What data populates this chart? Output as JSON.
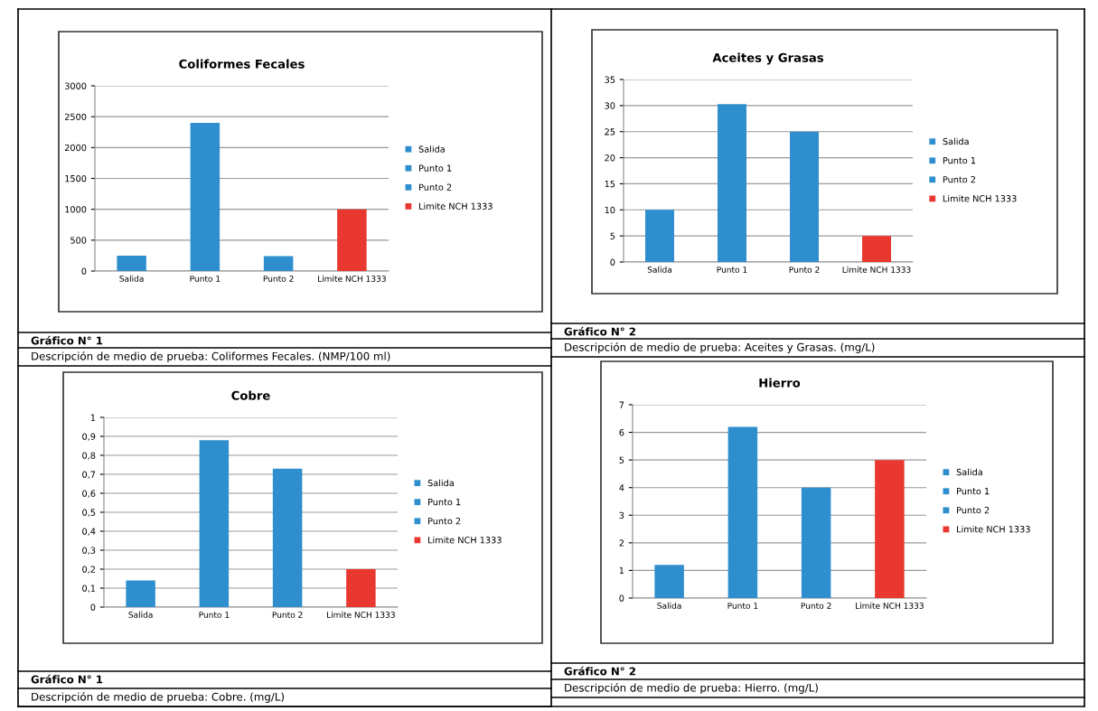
{
  "chart_data": [
    {
      "type": "bar",
      "title": "Coliformes Fecales",
      "categories": [
        "Salida",
        "Punto 1",
        "Punto 2",
        "Limite NCH 1333"
      ],
      "series": [
        {
          "name": "Salida",
          "color": "#2f8fce",
          "values": [
            250,
            null,
            null,
            null
          ]
        },
        {
          "name": "Punto 1",
          "color": "#2f8fce",
          "values": [
            null,
            2400,
            null,
            null
          ]
        },
        {
          "name": "Punto 2",
          "color": "#2f8fce",
          "values": [
            null,
            null,
            240,
            null
          ]
        },
        {
          "name": "Limite NCH 1333",
          "color": "#e8382f",
          "values": [
            null,
            null,
            null,
            1000
          ]
        }
      ],
      "ylim": [
        0,
        3000
      ],
      "yticks": [
        0,
        500,
        1000,
        1500,
        2000,
        2500,
        3000
      ],
      "grid": "y",
      "legend": "right",
      "annotations": [
        "Gráfico N° 1",
        "Descripción de medio de prueba: Coliformes Fecales. (NMP/100 ml)"
      ]
    },
    {
      "type": "bar",
      "title": "Aceites y Grasas",
      "categories": [
        "Salida",
        "Punto 1",
        "Punto 2",
        "Limite NCH 1333"
      ],
      "series": [
        {
          "name": "Salida",
          "color": "#2f8fce",
          "values": [
            10,
            null,
            null,
            null
          ]
        },
        {
          "name": "Punto 1",
          "color": "#2f8fce",
          "values": [
            null,
            30.3,
            null,
            null
          ]
        },
        {
          "name": "Punto 2",
          "color": "#2f8fce",
          "values": [
            null,
            null,
            25,
            null
          ]
        },
        {
          "name": "Limite NCH 1333",
          "color": "#e8382f",
          "values": [
            null,
            null,
            null,
            5
          ]
        }
      ],
      "ylim": [
        0,
        35
      ],
      "yticks": [
        0,
        5,
        10,
        15,
        20,
        25,
        30,
        35
      ],
      "grid": "y",
      "legend": "right",
      "annotations": [
        "Gráfico N° 2",
        "Descripción de medio de prueba: Aceites y Grasas. (mg/L)"
      ]
    },
    {
      "type": "bar",
      "title": "Cobre",
      "categories": [
        "Salida",
        "Punto 1",
        "Punto 2",
        "Limite NCH 1333"
      ],
      "series": [
        {
          "name": "Salida",
          "color": "#2f8fce",
          "values": [
            0.14,
            null,
            null,
            null
          ]
        },
        {
          "name": "Punto 1",
          "color": "#2f8fce",
          "values": [
            null,
            0.88,
            null,
            null
          ]
        },
        {
          "name": "Punto 2",
          "color": "#2f8fce",
          "values": [
            null,
            null,
            0.73,
            null
          ]
        },
        {
          "name": "Limite NCH 1333",
          "color": "#e8382f",
          "values": [
            null,
            null,
            null,
            0.2
          ]
        }
      ],
      "ylim": [
        0,
        1
      ],
      "yticks": [
        0,
        {
          "value": 0.1,
          "label": "0,1"
        },
        {
          "value": 0.2,
          "label": "0,2"
        },
        {
          "value": 0.3,
          "label": "0,3"
        },
        {
          "value": 0.4,
          "label": "0,4"
        },
        {
          "value": 0.5,
          "label": "0,5"
        },
        {
          "value": 0.6,
          "label": "0,6"
        },
        {
          "value": 0.7,
          "label": "0,7"
        },
        {
          "value": 0.8,
          "label": "0,8"
        },
        {
          "value": 0.9,
          "label": "0,9"
        },
        1
      ],
      "grid": "y",
      "legend": "right",
      "annotations": [
        "Gráfico N° 1",
        "Descripción de medio de prueba: Cobre. (mg/L)"
      ]
    },
    {
      "type": "bar",
      "title": "Hierro",
      "categories": [
        "Salida",
        "Punto 1",
        "Punto 2",
        "Limite NCH 1333"
      ],
      "series": [
        {
          "name": "Salida",
          "color": "#2f8fce",
          "values": [
            1.2,
            null,
            null,
            null
          ]
        },
        {
          "name": "Punto 1",
          "color": "#2f8fce",
          "values": [
            null,
            6.2,
            null,
            null
          ]
        },
        {
          "name": "Punto 2",
          "color": "#2f8fce",
          "values": [
            null,
            null,
            4.0,
            null
          ]
        },
        {
          "name": "Limite NCH 1333",
          "color": "#e8382f",
          "values": [
            null,
            null,
            null,
            5.0
          ]
        }
      ],
      "ylim": [
        0,
        7
      ],
      "yticks": [
        0,
        1,
        2,
        3,
        4,
        5,
        6,
        7
      ],
      "grid": "y",
      "legend": "right",
      "annotations": [
        "Gráfico N° 2",
        "Descripción de medio de prueba: Hierro. (mg/L)"
      ]
    }
  ]
}
